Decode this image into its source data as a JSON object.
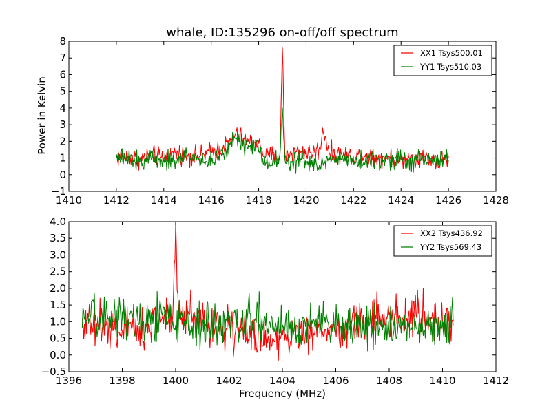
{
  "figure": {
    "title": "whale, ID:135296 on-off/off spectrum",
    "ylabel": "Power in Kelvin",
    "xlabel": "Frequency (MHz)"
  },
  "chart_data": [
    {
      "type": "line",
      "title": "whale, ID:135296 on-off/off spectrum",
      "xlabel": "",
      "ylabel": "Power in Kelvin",
      "xlim": [
        1410,
        1428
      ],
      "ylim": [
        -1,
        8
      ],
      "xticks": [
        "1410",
        "1412",
        "1414",
        "1416",
        "1418",
        "1420",
        "1422",
        "1424",
        "1426",
        "1428"
      ],
      "yticks": [
        "−1",
        "0",
        "1",
        "2",
        "3",
        "4",
        "5",
        "6",
        "7",
        "8"
      ],
      "legend": "top-right",
      "grid": false,
      "x": [
        1412.0,
        1412.5,
        1413.0,
        1413.5,
        1414.0,
        1414.5,
        1415.0,
        1415.5,
        1416.0,
        1416.5,
        1416.8,
        1417.0,
        1417.3,
        1417.6,
        1417.9,
        1418.1,
        1418.3,
        1418.6,
        1418.9,
        1419.0,
        1419.1,
        1419.4,
        1419.8,
        1420.2,
        1420.6,
        1420.7,
        1421.0,
        1421.5,
        1422.0,
        1422.5,
        1423.0,
        1423.5,
        1424.0,
        1424.5,
        1425.0,
        1425.5,
        1426.0
      ],
      "series": [
        {
          "name": "XX1 Tsys500.01",
          "color": "#ff0000",
          "values": [
            1.0,
            1.1,
            0.9,
            1.2,
            1.0,
            1.3,
            1.2,
            1.1,
            1.4,
            1.6,
            2.0,
            2.4,
            2.2,
            1.9,
            2.0,
            1.6,
            1.1,
            1.2,
            1.0,
            7.6,
            1.2,
            1.3,
            1.4,
            1.3,
            1.5,
            2.8,
            1.3,
            1.2,
            1.1,
            1.2,
            1.0,
            1.1,
            0.9,
            1.0,
            1.1,
            0.8,
            1.0
          ]
        },
        {
          "name": "YY1 Tsys510.03",
          "color": "#008000",
          "values": [
            1.0,
            0.9,
            0.8,
            1.0,
            0.9,
            0.8,
            1.1,
            0.9,
            0.8,
            1.2,
            1.8,
            2.2,
            2.0,
            1.7,
            1.9,
            1.2,
            0.7,
            0.8,
            1.2,
            4.0,
            0.9,
            0.8,
            0.9,
            0.6,
            0.5,
            0.8,
            0.9,
            1.0,
            0.9,
            0.8,
            0.9,
            1.0,
            0.9,
            0.8,
            0.9,
            0.9,
            0.9
          ]
        }
      ]
    },
    {
      "type": "line",
      "title": "",
      "xlabel": "Frequency (MHz)",
      "ylabel": "",
      "xlim": [
        1396,
        1412
      ],
      "ylim": [
        -0.5,
        4.0
      ],
      "xticks": [
        "1396",
        "1398",
        "1400",
        "1402",
        "1404",
        "1406",
        "1408",
        "1410",
        "1412"
      ],
      "yticks": [
        "−0.5",
        "0.0",
        "0.5",
        "1.0",
        "1.5",
        "2.0",
        "2.5",
        "3.0",
        "3.5",
        "4.0"
      ],
      "legend": "top-right",
      "grid": false,
      "x": [
        1396.5,
        1397.0,
        1397.5,
        1398.0,
        1398.5,
        1399.0,
        1399.5,
        1399.9,
        1400.0,
        1400.1,
        1400.5,
        1401.0,
        1401.5,
        1402.0,
        1402.5,
        1403.0,
        1403.5,
        1404.0,
        1404.5,
        1405.0,
        1405.5,
        1406.0,
        1406.5,
        1407.0,
        1407.5,
        1408.0,
        1408.5,
        1409.0,
        1409.5,
        1410.0,
        1410.4
      ],
      "series": [
        {
          "name": "XX2 Tsys436.92",
          "color": "#ff0000",
          "values": [
            1.1,
            0.9,
            0.8,
            0.7,
            0.8,
            0.9,
            1.1,
            1.2,
            4.0,
            1.3,
            1.2,
            1.1,
            0.9,
            0.8,
            0.7,
            0.6,
            0.5,
            0.6,
            0.5,
            0.6,
            0.7,
            0.8,
            0.9,
            1.0,
            1.1,
            1.2,
            1.1,
            1.2,
            1.1,
            1.0,
            0.9
          ]
        },
        {
          "name": "YY2 Tsys569.43",
          "color": "#008000",
          "values": [
            0.8,
            1.2,
            1.1,
            1.3,
            1.0,
            1.1,
            1.2,
            1.0,
            0.9,
            1.0,
            0.9,
            1.0,
            0.9,
            1.0,
            0.9,
            1.1,
            1.0,
            0.9,
            0.8,
            0.9,
            1.0,
            0.8,
            0.9,
            0.8,
            1.0,
            0.7,
            0.9,
            0.8,
            0.9,
            1.0,
            1.0
          ]
        }
      ]
    }
  ]
}
